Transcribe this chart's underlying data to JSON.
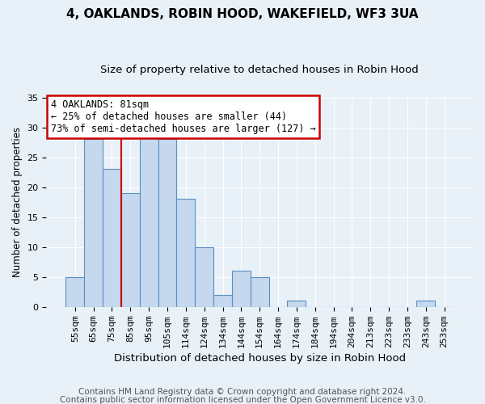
{
  "title": "4, OAKLANDS, ROBIN HOOD, WAKEFIELD, WF3 3UA",
  "subtitle": "Size of property relative to detached houses in Robin Hood",
  "xlabel": "Distribution of detached houses by size in Robin Hood",
  "ylabel": "Number of detached properties",
  "footer_lines": [
    "Contains HM Land Registry data © Crown copyright and database right 2024.",
    "Contains public sector information licensed under the Open Government Licence v3.0."
  ],
  "bin_labels": [
    "55sqm",
    "65sqm",
    "75sqm",
    "85sqm",
    "95sqm",
    "105sqm",
    "114sqm",
    "124sqm",
    "134sqm",
    "144sqm",
    "154sqm",
    "164sqm",
    "174sqm",
    "184sqm",
    "194sqm",
    "204sqm",
    "213sqm",
    "223sqm",
    "233sqm",
    "243sqm",
    "253sqm"
  ],
  "bar_values": [
    5,
    28,
    23,
    19,
    29,
    28,
    18,
    10,
    2,
    6,
    5,
    0,
    1,
    0,
    0,
    0,
    0,
    0,
    0,
    1,
    0
  ],
  "bar_color": "#c5d8ed",
  "bar_edge_color": "#5a8fc0",
  "bar_edge_width": 0.8,
  "ylim": [
    0,
    35
  ],
  "yticks": [
    0,
    5,
    10,
    15,
    20,
    25,
    30,
    35
  ],
  "grid_color": "#ffffff",
  "background_color": "#e8f0f8",
  "axes_bg_color": "#e8f0f8",
  "vline_color": "#cc0000",
  "annotation_box": {
    "text_line1": "4 OAKLANDS: 81sqm",
    "text_line2": "← 25% of detached houses are smaller (44)",
    "text_line3": "73% of semi-detached houses are larger (127) →",
    "box_edge_color": "#cc0000",
    "box_face_color": "#ffffff",
    "fontsize": 8.5
  },
  "title_fontsize": 11,
  "subtitle_fontsize": 9.5,
  "xlabel_fontsize": 9.5,
  "ylabel_fontsize": 8.5,
  "tick_fontsize": 8,
  "footer_fontsize": 7.5
}
